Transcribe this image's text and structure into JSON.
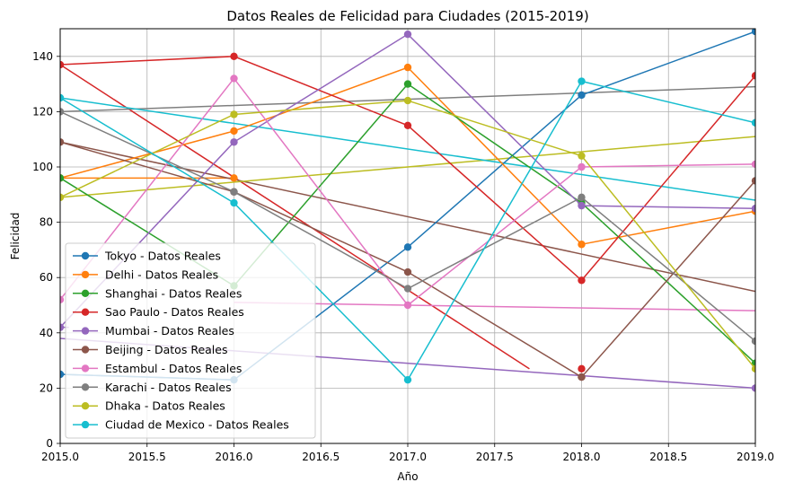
{
  "chart_data": {
    "type": "line",
    "title": "Datos Reales de Felicidad para Ciudades (2015-2019)",
    "xlabel": "Año",
    "ylabel": "Felicidad",
    "xlim": [
      2015.0,
      2019.0
    ],
    "ylim": [
      0,
      150
    ],
    "x_ticks": [
      "2015.0",
      "2015.5",
      "2016.0",
      "2016.5",
      "2017.0",
      "2017.5",
      "2018.0",
      "2018.5",
      "2019.0"
    ],
    "y_ticks": [
      "0",
      "20",
      "40",
      "60",
      "80",
      "100",
      "120",
      "140"
    ],
    "x": [
      2015,
      2016,
      2017,
      2018,
      2019
    ],
    "grid": true,
    "legend_position": "lower-left",
    "series": [
      {
        "name": "Tokyo - Datos Reales",
        "color": "#1f77b4",
        "values": [
          25,
          23,
          71,
          126,
          149
        ]
      },
      {
        "name": "Delhi - Datos Reales",
        "color": "#ff7f0e",
        "values": [
          96,
          113,
          136,
          72,
          84
        ]
      },
      {
        "name": "Shanghai - Datos Reales",
        "color": "#2ca02c",
        "values": [
          96,
          57,
          130,
          87,
          29
        ]
      },
      {
        "name": "Sao Paulo - Datos Reales",
        "color": "#d62728",
        "values": [
          137,
          140,
          115,
          59,
          133
        ]
      },
      {
        "name": "Mumbai - Datos Reales",
        "color": "#9467bd",
        "values": [
          42,
          109,
          148,
          86,
          85
        ]
      },
      {
        "name": "Beijing - Datos Reales",
        "color": "#8c564b",
        "values": [
          109,
          91,
          62,
          24,
          95
        ]
      },
      {
        "name": "Estambul - Datos Reales",
        "color": "#e377c2",
        "values": [
          52,
          132,
          50,
          100,
          101
        ]
      },
      {
        "name": "Karachi - Datos Reales",
        "color": "#7f7f7f",
        "values": [
          120,
          91,
          56,
          89,
          37
        ]
      },
      {
        "name": "Dhaka - Datos Reales",
        "color": "#bcbd22",
        "values": [
          89,
          119,
          124,
          104,
          27
        ]
      },
      {
        "name": "Ciudad de Mexico - Datos Reales",
        "color": "#17becf",
        "values": [
          125,
          87,
          23,
          131,
          116
        ]
      }
    ],
    "extra_lines": [
      {
        "color": "#ff7f0e",
        "x": [
          2015,
          2016
        ],
        "y": [
          96,
          96
        ]
      },
      {
        "color": "#d62728",
        "x": [
          2015,
          2017.7
        ],
        "y": [
          137,
          27
        ]
      },
      {
        "color": "#8c564b",
        "x": [
          2015,
          2019
        ],
        "y": [
          109,
          55
        ]
      },
      {
        "color": "#7f7f7f",
        "x": [
          2015,
          2019
        ],
        "y": [
          120,
          129
        ]
      },
      {
        "color": "#bcbd22",
        "x": [
          2015,
          2019
        ],
        "y": [
          89,
          111
        ]
      },
      {
        "color": "#17becf",
        "x": [
          2015,
          2019
        ],
        "y": [
          125,
          88
        ]
      },
      {
        "color": "#9467bd",
        "x": [
          2015,
          2019
        ],
        "y": [
          38,
          20
        ]
      },
      {
        "color": "#e377c2",
        "x": [
          2016,
          2019
        ],
        "y": [
          51,
          48
        ]
      },
      {
        "color": "#9467bd",
        "x": [
          2015,
          2015.05
        ],
        "y": [
          42,
          42
        ]
      },
      {
        "color": "#1f77b4",
        "x": [
          2015,
          2016
        ],
        "y": [
          25,
          23
        ]
      }
    ],
    "extra_markers": [
      {
        "color": "#ff7f0e",
        "x": 2016,
        "y": 96
      },
      {
        "color": "#d62728",
        "x": 2018,
        "y": 27
      },
      {
        "color": "#9467bd",
        "x": 2019,
        "y": 20
      },
      {
        "color": "#8c564b",
        "x": 2018,
        "y": 24
      }
    ]
  }
}
